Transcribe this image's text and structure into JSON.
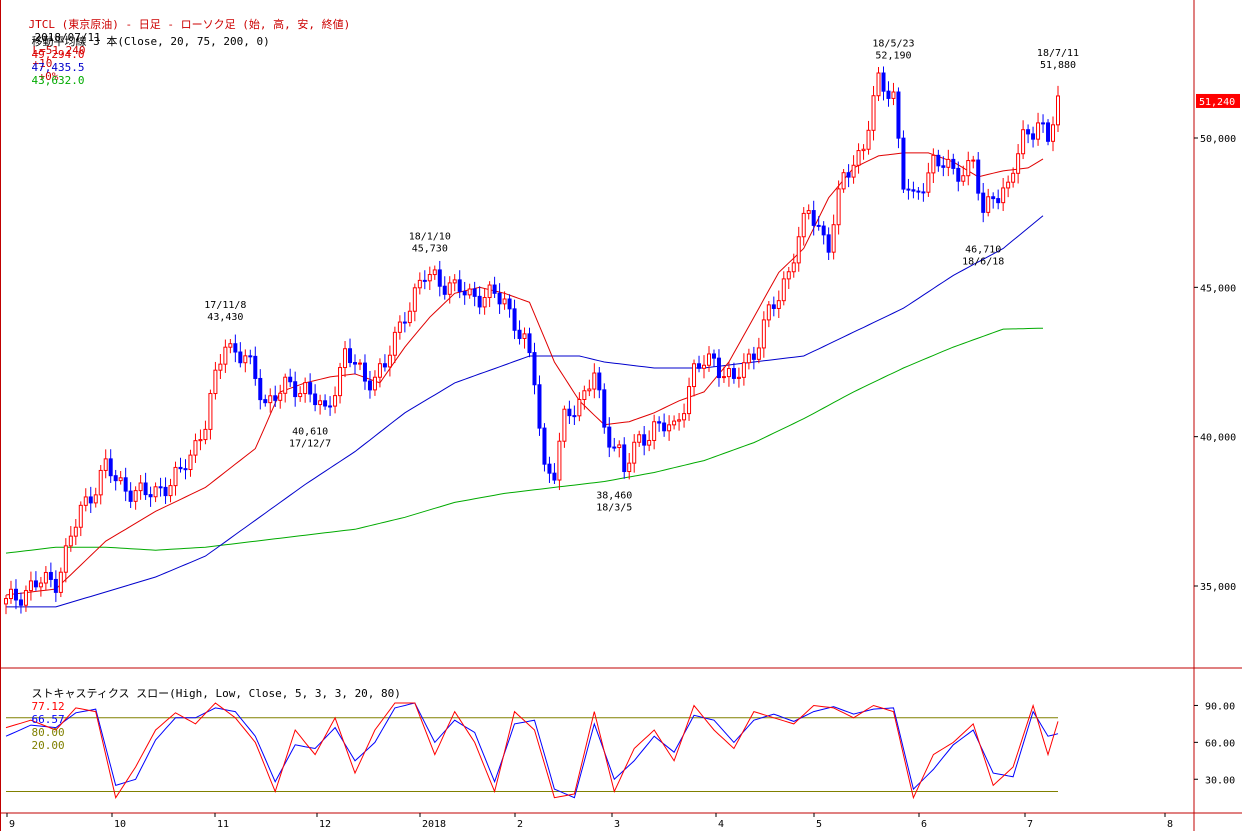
{
  "header": {
    "title": "JTCL (東京原油) - 日足 - ローソク足 (始, 高, 安, 終値)",
    "date": "2018/07/11",
    "last": "L=51,240",
    "change": "+10",
    "change_pct": "+0%",
    "ma_label": "移動平均線 3 本(Close, 20, 75, 200, 0)",
    "ma20": "49,294.0",
    "ma75": "47,435.5",
    "ma200": "43,632.0",
    "stoch_label": "ストキャスティクス スロー(High, Low, Close, 5, 3, 3, 20, 80)",
    "stoch_k": "77.12",
    "stoch_d": "66.57",
    "stoch_upper": "80.00",
    "stoch_lower": "20.00"
  },
  "colors": {
    "up": "#ff0000",
    "down": "#0000ff",
    "ma20": "#e00000",
    "ma75": "#0000cc",
    "ma200": "#00aa00",
    "stoch_k": "#ff0000",
    "stoch_d": "#0000ff",
    "stoch_band": "#808000",
    "current_price_bg": "#ff0000",
    "frame": "#c00000"
  },
  "chart_data": [
    {
      "type": "candlestick",
      "title": "JTCL (東京原油) - 日足",
      "y_ticks": [
        "35,000",
        "40,000",
        "45,000",
        "50,000"
      ],
      "ylim": [
        32500,
        54500
      ],
      "current_price_label": "51,240",
      "x_month_labels": [
        "9",
        "10",
        "11",
        "12",
        "2018",
        "2",
        "3",
        "4",
        "5",
        "6",
        "7",
        "8"
      ],
      "annotations": [
        {
          "date": "17/11/8",
          "value": "43,430",
          "kind": "high"
        },
        {
          "date": "17/12/7",
          "value": "40,610",
          "kind": "low"
        },
        {
          "date": "18/1/10",
          "value": "45,730",
          "kind": "high"
        },
        {
          "date": "18/3/5",
          "value": "38,460",
          "kind": "low"
        },
        {
          "date": "18/5/23",
          "value": "52,190",
          "kind": "high"
        },
        {
          "date": "18/6/18",
          "value": "46,710",
          "kind": "low"
        },
        {
          "date": "18/7/11",
          "value": "51,880",
          "kind": "high"
        }
      ],
      "ma_anchors": {
        "ma20": [
          [
            0,
            34700
          ],
          [
            10,
            34900
          ],
          [
            20,
            36500
          ],
          [
            30,
            37500
          ],
          [
            40,
            38300
          ],
          [
            50,
            39600
          ],
          [
            55,
            41500
          ],
          [
            60,
            41800
          ],
          [
            65,
            42000
          ],
          [
            70,
            42100
          ],
          [
            75,
            41800
          ],
          [
            80,
            43000
          ],
          [
            85,
            44000
          ],
          [
            90,
            44800
          ],
          [
            95,
            45000
          ],
          [
            100,
            44800
          ],
          [
            105,
            44500
          ],
          [
            110,
            42500
          ],
          [
            115,
            41200
          ],
          [
            120,
            40400
          ],
          [
            125,
            40500
          ],
          [
            130,
            40800
          ],
          [
            135,
            41200
          ],
          [
            140,
            41500
          ],
          [
            145,
            42500
          ],
          [
            150,
            44000
          ],
          [
            155,
            45500
          ],
          [
            160,
            46300
          ],
          [
            165,
            48000
          ],
          [
            170,
            49000
          ],
          [
            175,
            49400
          ],
          [
            180,
            49500
          ],
          [
            185,
            49500
          ],
          [
            190,
            49200
          ],
          [
            195,
            48700
          ],
          [
            200,
            48900
          ],
          [
            205,
            49000
          ],
          [
            208,
            49300
          ]
        ],
        "ma75": [
          [
            0,
            34300
          ],
          [
            10,
            34300
          ],
          [
            20,
            34800
          ],
          [
            30,
            35300
          ],
          [
            40,
            36000
          ],
          [
            50,
            37200
          ],
          [
            60,
            38400
          ],
          [
            70,
            39500
          ],
          [
            80,
            40800
          ],
          [
            90,
            41800
          ],
          [
            100,
            42400
          ],
          [
            105,
            42700
          ],
          [
            110,
            42700
          ],
          [
            115,
            42700
          ],
          [
            120,
            42500
          ],
          [
            130,
            42300
          ],
          [
            140,
            42300
          ],
          [
            150,
            42500
          ],
          [
            160,
            42700
          ],
          [
            170,
            43500
          ],
          [
            180,
            44300
          ],
          [
            190,
            45400
          ],
          [
            200,
            46300
          ],
          [
            208,
            47400
          ]
        ],
        "ma200": [
          [
            0,
            36100
          ],
          [
            10,
            36300
          ],
          [
            20,
            36300
          ],
          [
            30,
            36200
          ],
          [
            40,
            36300
          ],
          [
            50,
            36500
          ],
          [
            60,
            36700
          ],
          [
            70,
            36900
          ],
          [
            80,
            37300
          ],
          [
            90,
            37800
          ],
          [
            100,
            38100
          ],
          [
            110,
            38300
          ],
          [
            120,
            38500
          ],
          [
            130,
            38800
          ],
          [
            140,
            39200
          ],
          [
            150,
            39800
          ],
          [
            160,
            40600
          ],
          [
            170,
            41500
          ],
          [
            180,
            42300
          ],
          [
            190,
            43000
          ],
          [
            200,
            43600
          ],
          [
            208,
            43632
          ]
        ]
      },
      "candle_anchors": [
        [
          0,
          34400
        ],
        [
          5,
          35000
        ],
        [
          10,
          35200
        ],
        [
          15,
          37500
        ],
        [
          20,
          39000
        ],
        [
          22,
          38500
        ],
        [
          28,
          38000
        ],
        [
          35,
          38700
        ],
        [
          40,
          40500
        ],
        [
          44,
          43200
        ],
        [
          48,
          42600
        ],
        [
          52,
          41200
        ],
        [
          56,
          41600
        ],
        [
          60,
          41700
        ],
        [
          64,
          40700
        ],
        [
          68,
          42800
        ],
        [
          72,
          41900
        ],
        [
          76,
          42300
        ],
        [
          80,
          44200
        ],
        [
          84,
          45300
        ],
        [
          86,
          45400
        ],
        [
          90,
          44900
        ],
        [
          96,
          44700
        ],
        [
          100,
          44600
        ],
        [
          104,
          43100
        ],
        [
          106,
          41900
        ],
        [
          108,
          39000
        ],
        [
          110,
          38800
        ],
        [
          112,
          40500
        ],
        [
          116,
          41500
        ],
        [
          118,
          42100
        ],
        [
          120,
          40200
        ],
        [
          123,
          39600
        ],
        [
          124,
          38900
        ],
        [
          127,
          39800
        ],
        [
          130,
          40400
        ],
        [
          134,
          40200
        ],
        [
          138,
          42200
        ],
        [
          142,
          42600
        ],
        [
          146,
          41800
        ],
        [
          150,
          42900
        ],
        [
          153,
          44100
        ],
        [
          155,
          44600
        ],
        [
          158,
          46200
        ],
        [
          161,
          47500
        ],
        [
          165,
          46500
        ],
        [
          168,
          48600
        ],
        [
          172,
          49800
        ],
        [
          175,
          51800
        ],
        [
          178,
          51500
        ],
        [
          180,
          48500
        ],
        [
          182,
          47800
        ],
        [
          186,
          49300
        ],
        [
          190,
          48800
        ],
        [
          194,
          49200
        ],
        [
          196,
          47300
        ],
        [
          198,
          48200
        ],
        [
          201,
          48300
        ],
        [
          204,
          50000
        ],
        [
          207,
          50600
        ],
        [
          209,
          49800
        ],
        [
          211,
          51240
        ]
      ],
      "n_days": 212
    },
    {
      "type": "line",
      "title": "ストキャスティクス スロー",
      "y_ticks": [
        "30.00",
        "60.00",
        "90.00"
      ],
      "ylim": [
        5,
        105
      ],
      "hlines": [
        80,
        20
      ],
      "k_anchors": [
        [
          0,
          72
        ],
        [
          5,
          78
        ],
        [
          10,
          70
        ],
        [
          14,
          88
        ],
        [
          18,
          85
        ],
        [
          22,
          15
        ],
        [
          26,
          40
        ],
        [
          30,
          70
        ],
        [
          34,
          84
        ],
        [
          38,
          75
        ],
        [
          42,
          92
        ],
        [
          46,
          80
        ],
        [
          50,
          60
        ],
        [
          54,
          20
        ],
        [
          58,
          70
        ],
        [
          62,
          50
        ],
        [
          66,
          80
        ],
        [
          70,
          35
        ],
        [
          74,
          70
        ],
        [
          78,
          92
        ],
        [
          82,
          92
        ],
        [
          86,
          50
        ],
        [
          90,
          85
        ],
        [
          94,
          60
        ],
        [
          98,
          20
        ],
        [
          102,
          85
        ],
        [
          106,
          70
        ],
        [
          110,
          15
        ],
        [
          114,
          18
        ],
        [
          118,
          85
        ],
        [
          122,
          20
        ],
        [
          126,
          55
        ],
        [
          130,
          70
        ],
        [
          134,
          45
        ],
        [
          138,
          90
        ],
        [
          142,
          70
        ],
        [
          146,
          55
        ],
        [
          150,
          85
        ],
        [
          154,
          80
        ],
        [
          158,
          75
        ],
        [
          162,
          90
        ],
        [
          166,
          88
        ],
        [
          170,
          80
        ],
        [
          174,
          90
        ],
        [
          178,
          85
        ],
        [
          182,
          15
        ],
        [
          186,
          50
        ],
        [
          190,
          60
        ],
        [
          194,
          75
        ],
        [
          198,
          25
        ],
        [
          202,
          40
        ],
        [
          206,
          90
        ],
        [
          209,
          50
        ],
        [
          211,
          77
        ]
      ],
      "d_anchors": [
        [
          0,
          65
        ],
        [
          5,
          74
        ],
        [
          10,
          72
        ],
        [
          14,
          84
        ],
        [
          18,
          87
        ],
        [
          22,
          25
        ],
        [
          26,
          30
        ],
        [
          30,
          62
        ],
        [
          34,
          80
        ],
        [
          38,
          80
        ],
        [
          42,
          88
        ],
        [
          46,
          85
        ],
        [
          50,
          65
        ],
        [
          54,
          28
        ],
        [
          58,
          58
        ],
        [
          62,
          55
        ],
        [
          66,
          72
        ],
        [
          70,
          45
        ],
        [
          74,
          60
        ],
        [
          78,
          88
        ],
        [
          82,
          92
        ],
        [
          86,
          60
        ],
        [
          90,
          78
        ],
        [
          94,
          68
        ],
        [
          98,
          28
        ],
        [
          102,
          75
        ],
        [
          106,
          78
        ],
        [
          110,
          22
        ],
        [
          114,
          15
        ],
        [
          118,
          75
        ],
        [
          122,
          30
        ],
        [
          126,
          45
        ],
        [
          130,
          65
        ],
        [
          134,
          52
        ],
        [
          138,
          82
        ],
        [
          142,
          78
        ],
        [
          146,
          60
        ],
        [
          150,
          78
        ],
        [
          154,
          83
        ],
        [
          158,
          77
        ],
        [
          162,
          85
        ],
        [
          166,
          89
        ],
        [
          170,
          83
        ],
        [
          174,
          87
        ],
        [
          178,
          88
        ],
        [
          182,
          22
        ],
        [
          186,
          38
        ],
        [
          190,
          58
        ],
        [
          194,
          70
        ],
        [
          198,
          35
        ],
        [
          202,
          32
        ],
        [
          206,
          85
        ],
        [
          209,
          65
        ],
        [
          211,
          67
        ]
      ]
    }
  ]
}
